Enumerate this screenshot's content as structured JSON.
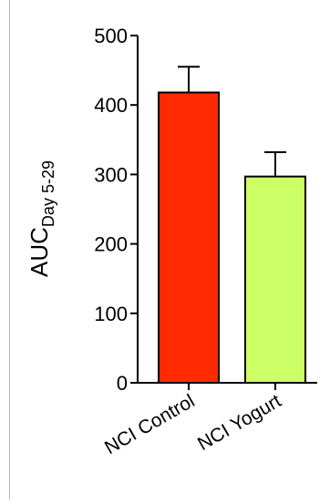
{
  "chart_data": {
    "type": "bar",
    "title": "",
    "xlabel": "",
    "ylabel": {
      "main": "AUC",
      "subscript": "Day 5-29"
    },
    "ylim": [
      0,
      500
    ],
    "yticks": [
      0,
      100,
      200,
      300,
      400,
      500
    ],
    "ytick_labels": [
      "0",
      "100",
      "200",
      "300",
      "400",
      "500"
    ],
    "categories": [
      "NCI Control",
      "NCI Yogurt"
    ],
    "series": [
      {
        "values": [
          418,
          297
        ],
        "error_upper": [
          37,
          35
        ],
        "colors": [
          "#ff2a00",
          "#ccff66"
        ]
      }
    ],
    "grid": false,
    "legend": "none"
  }
}
